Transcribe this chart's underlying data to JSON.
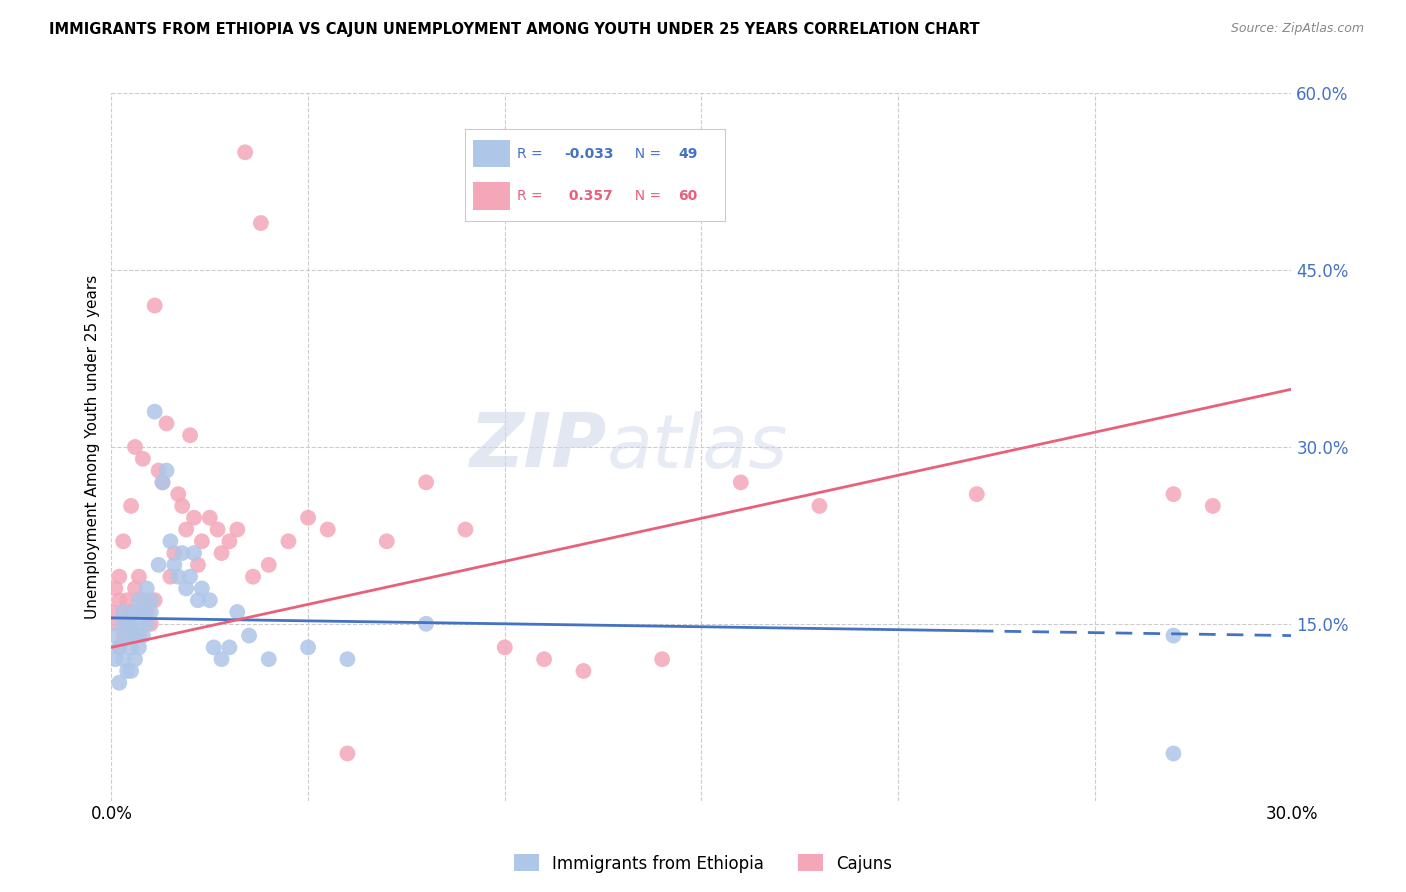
{
  "title": "IMMIGRANTS FROM ETHIOPIA VS CAJUN UNEMPLOYMENT AMONG YOUTH UNDER 25 YEARS CORRELATION CHART",
  "source": "Source: ZipAtlas.com",
  "ylabel": "Unemployment Among Youth under 25 years",
  "x_min": 0.0,
  "x_max": 0.3,
  "y_min": 0.0,
  "y_max": 0.6,
  "x_ticks": [
    0.0,
    0.05,
    0.1,
    0.15,
    0.2,
    0.25,
    0.3
  ],
  "y_ticks_right": [
    0.15,
    0.3,
    0.45,
    0.6
  ],
  "y_tick_labels_right": [
    "15.0%",
    "30.0%",
    "45.0%",
    "60.0%"
  ],
  "legend_entries": [
    {
      "label_r": "R = -0.033",
      "label_n": "N = 49",
      "color": "#aec6e8",
      "text_color": "#4472c4"
    },
    {
      "label_r": "R =  0.357",
      "label_n": "N = 60",
      "color": "#f4a7b9",
      "text_color": "#e05a6e"
    }
  ],
  "bottom_legend": [
    "Immigrants from Ethiopia",
    "Cajuns"
  ],
  "bottom_legend_colors": [
    "#aec6e8",
    "#f4a7b9"
  ],
  "watermark_zip": "ZIP",
  "watermark_atlas": "atlas",
  "blue_line_intercept": 0.155,
  "blue_line_slope": -0.05,
  "pink_line_intercept": 0.13,
  "pink_line_slope": 0.73,
  "blue_line_solid_end": 0.22,
  "blue_line_color": "#4472c4",
  "pink_line_color": "#e8607a",
  "blue_scatter_color": "#aec6e8",
  "pink_scatter_color": "#f4a7b9",
  "background_color": "#ffffff",
  "grid_color": "#cccccc",
  "blue_scatter_x": [
    0.001,
    0.001,
    0.002,
    0.002,
    0.003,
    0.003,
    0.003,
    0.004,
    0.004,
    0.005,
    0.005,
    0.005,
    0.006,
    0.006,
    0.006,
    0.007,
    0.007,
    0.007,
    0.008,
    0.008,
    0.009,
    0.009,
    0.01,
    0.01,
    0.011,
    0.012,
    0.013,
    0.014,
    0.015,
    0.016,
    0.017,
    0.018,
    0.019,
    0.02,
    0.021,
    0.022,
    0.023,
    0.025,
    0.026,
    0.028,
    0.03,
    0.032,
    0.035,
    0.04,
    0.05,
    0.06,
    0.08,
    0.27,
    0.27
  ],
  "blue_scatter_y": [
    0.14,
    0.12,
    0.13,
    0.1,
    0.16,
    0.15,
    0.12,
    0.14,
    0.11,
    0.13,
    0.15,
    0.11,
    0.16,
    0.14,
    0.12,
    0.17,
    0.15,
    0.13,
    0.16,
    0.14,
    0.18,
    0.15,
    0.17,
    0.16,
    0.33,
    0.2,
    0.27,
    0.28,
    0.22,
    0.2,
    0.19,
    0.21,
    0.18,
    0.19,
    0.21,
    0.17,
    0.18,
    0.17,
    0.13,
    0.12,
    0.13,
    0.16,
    0.14,
    0.12,
    0.13,
    0.12,
    0.15,
    0.14,
    0.04
  ],
  "pink_scatter_x": [
    0.0,
    0.001,
    0.001,
    0.002,
    0.002,
    0.002,
    0.003,
    0.003,
    0.003,
    0.004,
    0.004,
    0.005,
    0.005,
    0.006,
    0.006,
    0.007,
    0.007,
    0.008,
    0.008,
    0.009,
    0.01,
    0.011,
    0.011,
    0.012,
    0.013,
    0.014,
    0.015,
    0.016,
    0.017,
    0.018,
    0.019,
    0.02,
    0.021,
    0.022,
    0.023,
    0.025,
    0.027,
    0.028,
    0.03,
    0.032,
    0.034,
    0.036,
    0.038,
    0.04,
    0.045,
    0.05,
    0.055,
    0.06,
    0.07,
    0.08,
    0.09,
    0.1,
    0.11,
    0.12,
    0.14,
    0.16,
    0.18,
    0.22,
    0.27,
    0.28
  ],
  "pink_scatter_y": [
    0.16,
    0.18,
    0.15,
    0.17,
    0.19,
    0.13,
    0.16,
    0.14,
    0.22,
    0.15,
    0.17,
    0.16,
    0.25,
    0.18,
    0.3,
    0.19,
    0.14,
    0.17,
    0.29,
    0.16,
    0.15,
    0.42,
    0.17,
    0.28,
    0.27,
    0.32,
    0.19,
    0.21,
    0.26,
    0.25,
    0.23,
    0.31,
    0.24,
    0.2,
    0.22,
    0.24,
    0.23,
    0.21,
    0.22,
    0.23,
    0.55,
    0.19,
    0.49,
    0.2,
    0.22,
    0.24,
    0.23,
    0.04,
    0.22,
    0.27,
    0.23,
    0.13,
    0.12,
    0.11,
    0.12,
    0.27,
    0.25,
    0.26,
    0.26,
    0.25
  ]
}
